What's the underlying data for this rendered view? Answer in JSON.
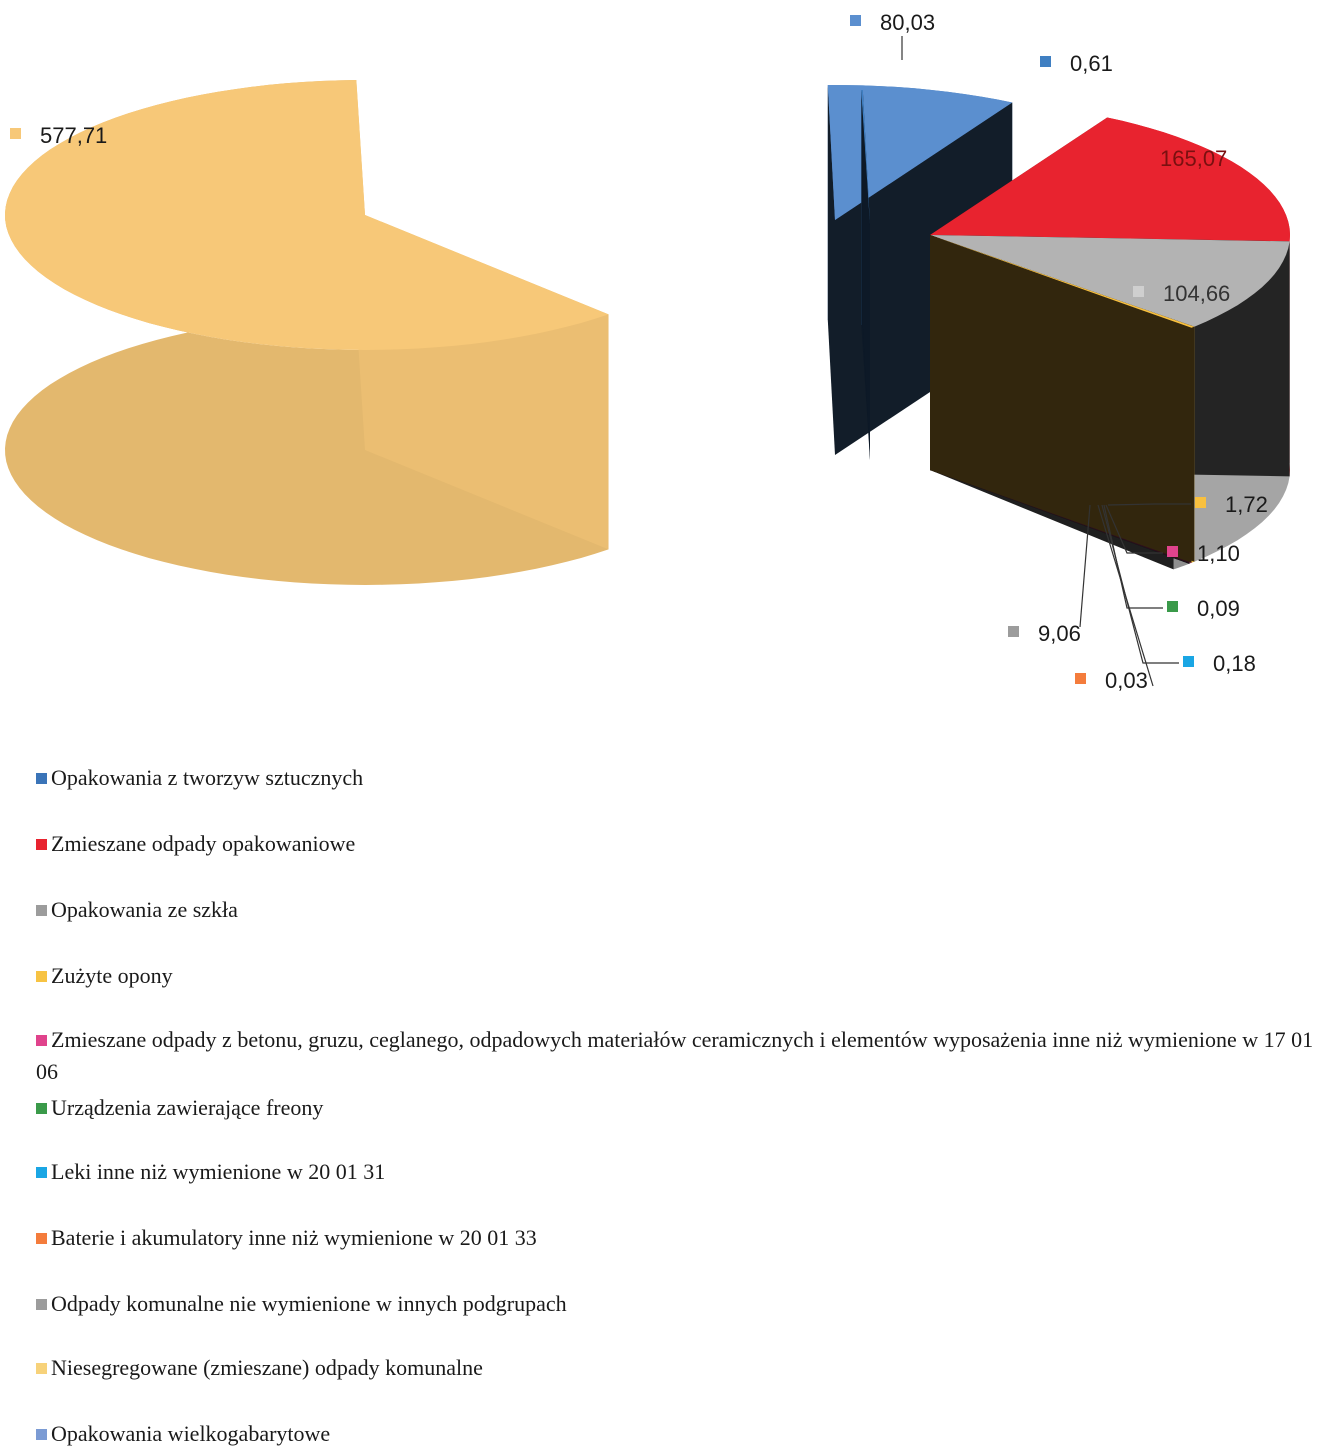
{
  "chart_data": {
    "type": "pie",
    "style": "3d-exploded",
    "slices": [
      {
        "label": "Opakowania z tworzyw sztucznych",
        "value": 80.03,
        "value_label": "80,03",
        "color": "#5b8fcf"
      },
      {
        "label": "Zmieszane odpady opakowaniowe",
        "value": 165.07,
        "value_label": "165,07",
        "color": "#e8232f"
      },
      {
        "label": "Opakowania ze szkła",
        "value": 104.66,
        "value_label": "104,66",
        "color": "#b3b3b3"
      },
      {
        "label": "Zużyte opony",
        "value": 1.72,
        "value_label": "1,72",
        "color": "#f8c03f"
      },
      {
        "label": "Zmieszane odpady z betonu, gruzu, ceglanego, odpadowych materiałów ceramicznych i elementów wyposażenia inne niż wymienione w 17 01 06",
        "value": 1.1,
        "value_label": "1,10",
        "color": "#e0438c"
      },
      {
        "label": "Urządzenia zawierające freony",
        "value": 0.09,
        "value_label": "0,09",
        "color": "#3a9a4a"
      },
      {
        "label": "Leki inne niż wymienione w 20 01 31",
        "value": 0.18,
        "value_label": "0,18",
        "color": "#1aa6e4"
      },
      {
        "label": "Baterie i akumulatory inne niż wymienione w 20 01 33",
        "value": 0.03,
        "value_label": "0,03",
        "color": "#f47c3c"
      },
      {
        "label": "Odpady komunalne nie wymienione w innych podgrupach",
        "value": 9.06,
        "value_label": "9,06",
        "color": "#9c9c9c"
      },
      {
        "label": "Niesegregowane (zmieszane) odpady komunalne",
        "value": 577.71,
        "value_label": "577,71",
        "color": "#f7c878"
      },
      {
        "label": "Opakowania wielkogabarytowe",
        "value": 0.61,
        "value_label": "0,61",
        "color": "#3f7fc2"
      }
    ],
    "legend_position": "bottom",
    "grid": false
  }
}
